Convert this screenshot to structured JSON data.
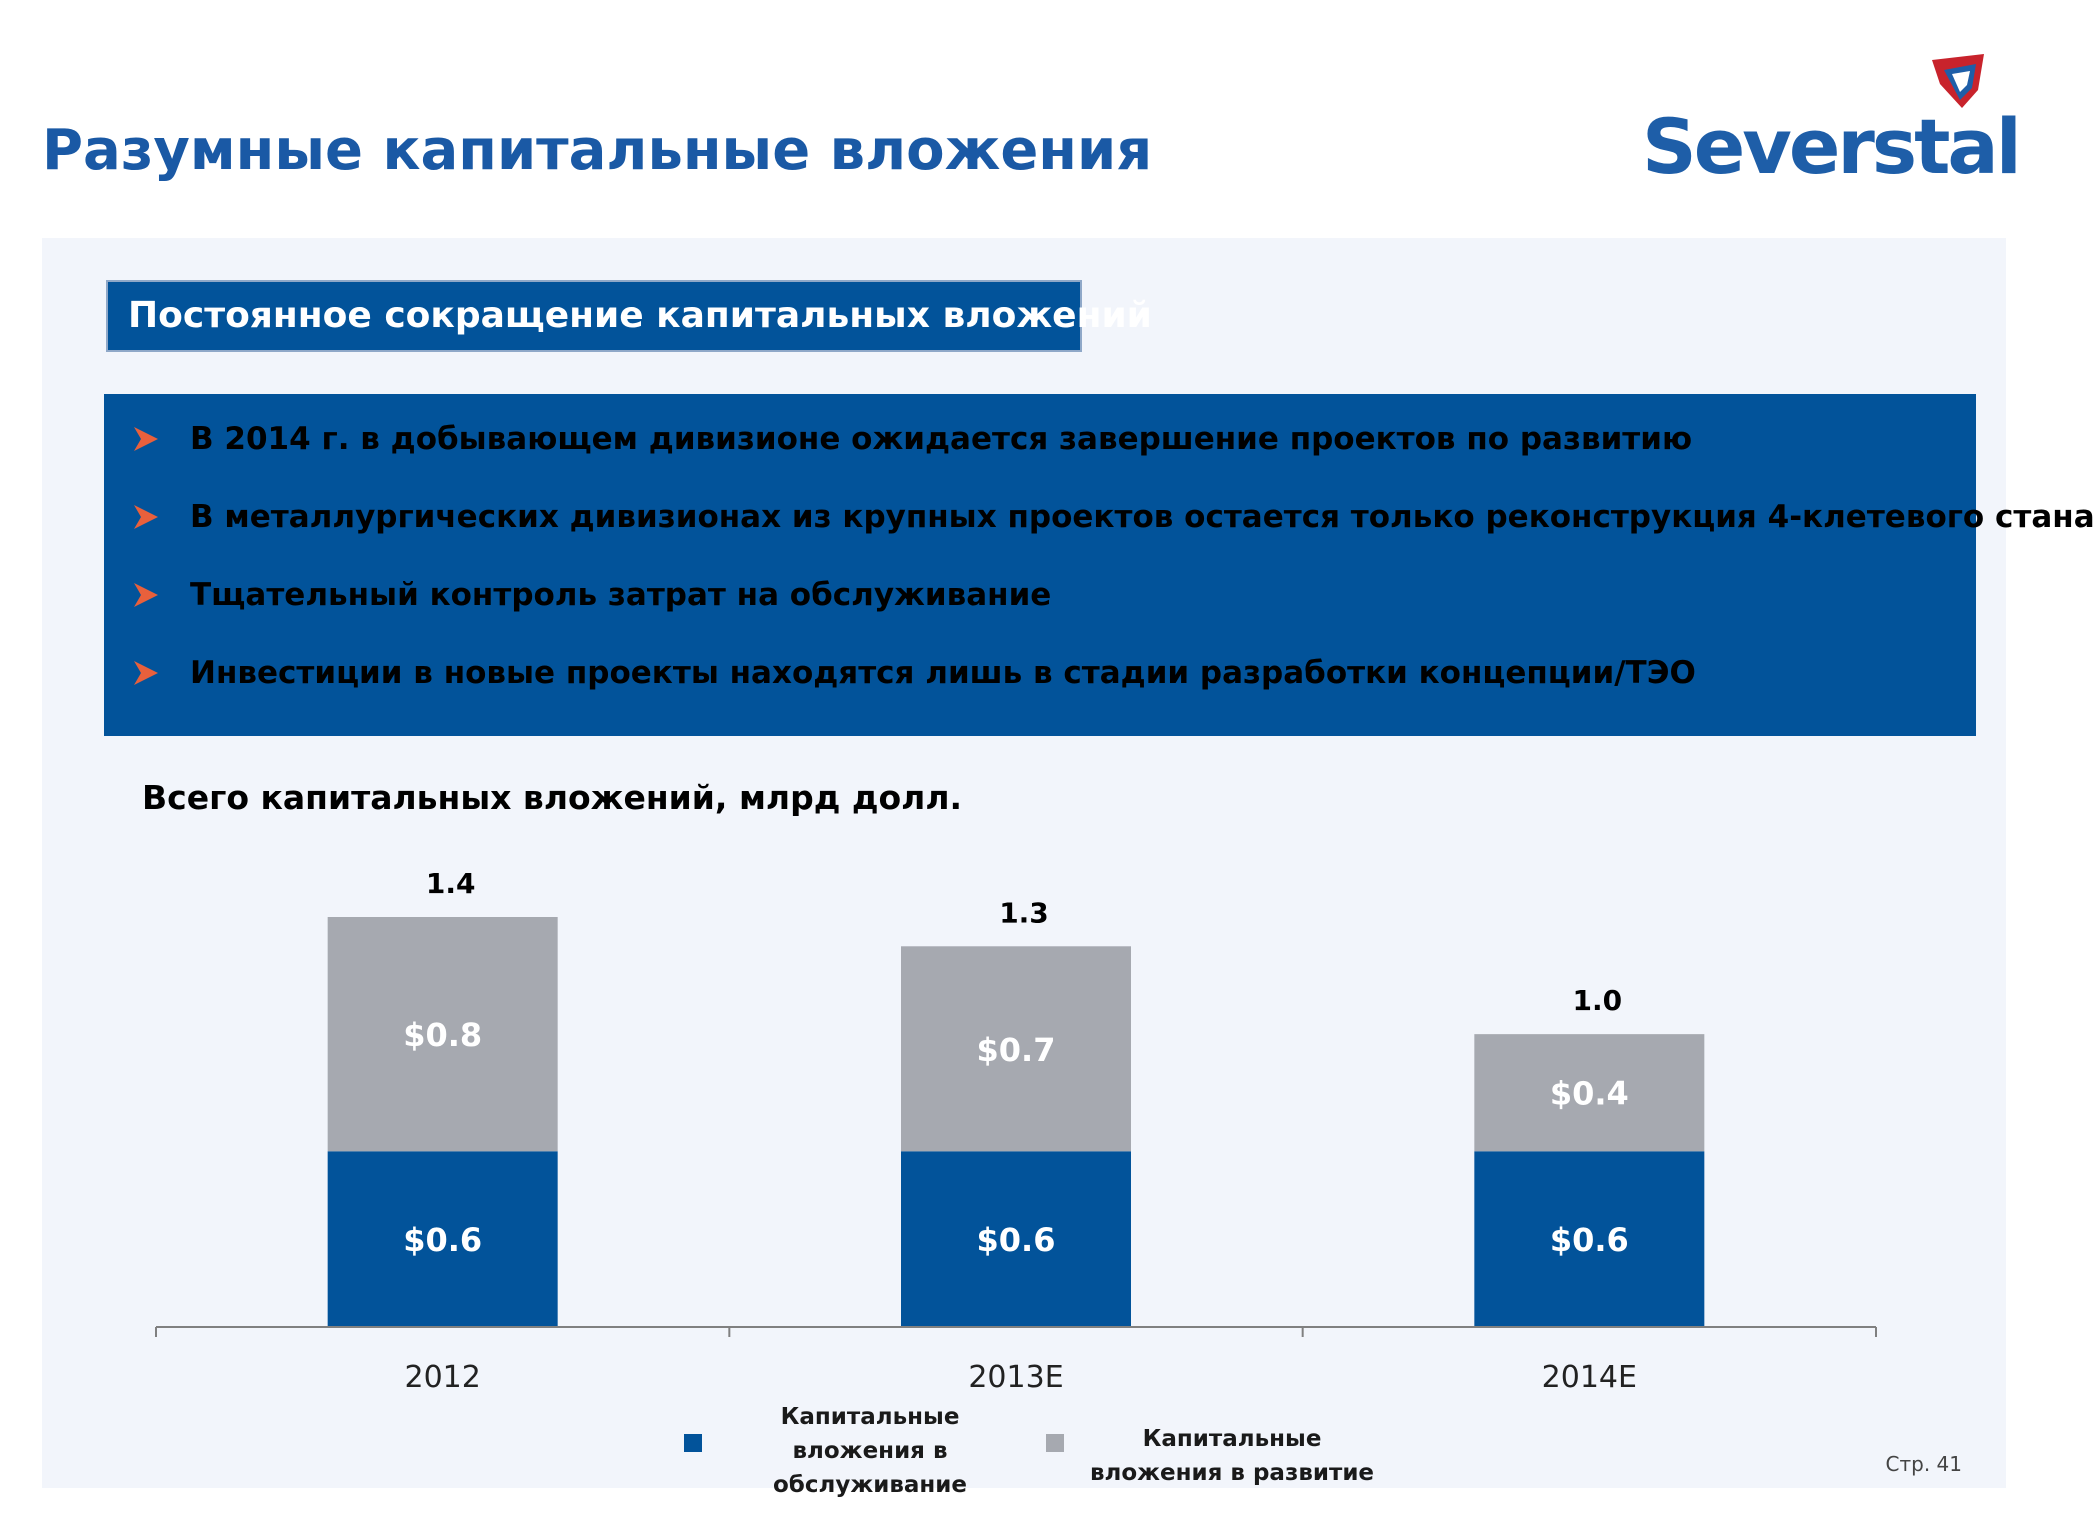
{
  "page": {
    "title": "Разумные капитальные вложения",
    "logo_text": "Severstal",
    "page_number": "Стр. 41"
  },
  "section": {
    "title": "Постоянное сокращение капитальных вложений"
  },
  "bullets": [
    "В 2014 г. в добывающем дивизионе ожидается завершение проектов по развитию",
    "В металлургических дивизионах из крупных проектов остается только реконструкция 4-клетевого стана",
    "Тщательный контроль затрат на обслуживание",
    "Инвестиции в новые проекты находятся лишь в стадии разработки концепции/ТЭО"
  ],
  "colors": {
    "title": "#1a59a5",
    "panel_blue": "#02539a",
    "maintenance": "#02539a",
    "development": "#a6a9b0",
    "bullet_arrow": "#e8603c"
  },
  "icons": {
    "bullet": "arrow-bullet-icon",
    "logo": "severstal-logo-icon"
  },
  "chart_data": {
    "type": "bar",
    "stacked": true,
    "title": "Всего капитальных вложений, млрд долл.",
    "categories": [
      "2012",
      "2013E",
      "2014E"
    ],
    "series": [
      {
        "name": "Капитальные вложения в обслуживание",
        "color": "#02539a",
        "values": [
          0.6,
          0.6,
          0.6
        ],
        "labels": [
          "$0.6",
          "$0.6",
          "$0.6"
        ]
      },
      {
        "name": "Капитальные вложения в развитие",
        "color": "#a6a9b0",
        "values": [
          0.8,
          0.7,
          0.4
        ],
        "labels": [
          "$0.8",
          "$0.7",
          "$0.4"
        ]
      }
    ],
    "totals": [
      "1.4",
      "1.3",
      "1.0"
    ],
    "ylim": [
      0,
      1.4
    ],
    "grid": false,
    "legend_position": "bottom"
  }
}
